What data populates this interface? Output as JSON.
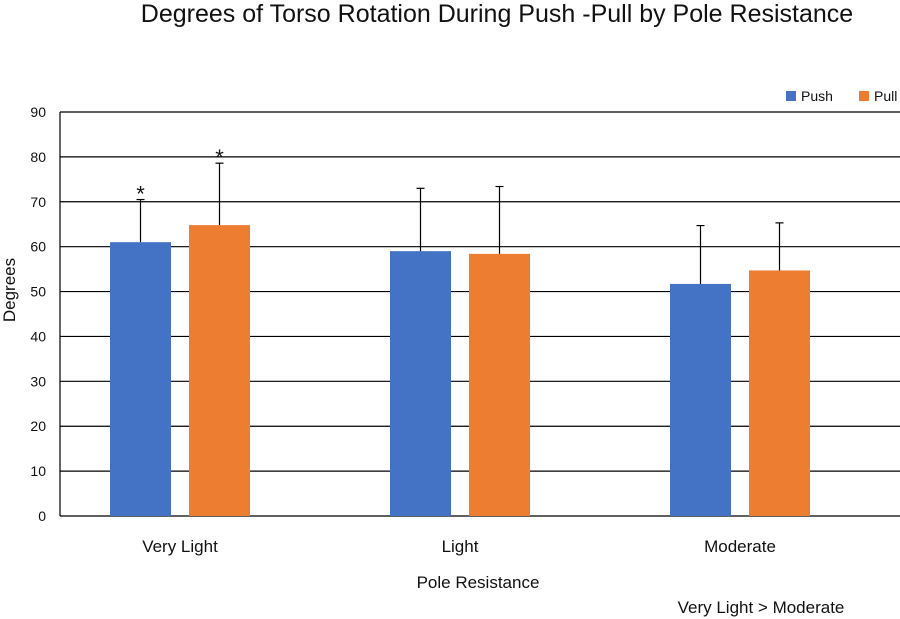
{
  "chart_data": {
    "type": "bar",
    "title": "Degrees of Torso Rotation During Push -Pull by Pole Resistance",
    "xlabel": "Pole Resistance",
    "ylabel": "Degrees",
    "categories": [
      "Very Light",
      "Light",
      "Moderate"
    ],
    "series": [
      {
        "name": "Push",
        "values": [
          61,
          59,
          51.7
        ],
        "errors": [
          9.5,
          14,
          13
        ],
        "color": "#4472C4"
      },
      {
        "name": "Pull",
        "values": [
          64.8,
          58.4,
          54.7
        ],
        "errors": [
          13.8,
          15,
          10.6
        ],
        "color": "#ED7D31"
      }
    ],
    "ylim": [
      0,
      90
    ],
    "yticks": [
      0,
      10,
      20,
      30,
      40,
      50,
      60,
      70,
      80,
      90
    ],
    "grid": true,
    "legend_position": "top-right",
    "significance_markers": [
      {
        "category": "Very Light",
        "series": "Push",
        "label": "*"
      },
      {
        "category": "Very Light",
        "series": "Pull",
        "label": "*"
      }
    ],
    "note": "Very Light > Moderate"
  }
}
